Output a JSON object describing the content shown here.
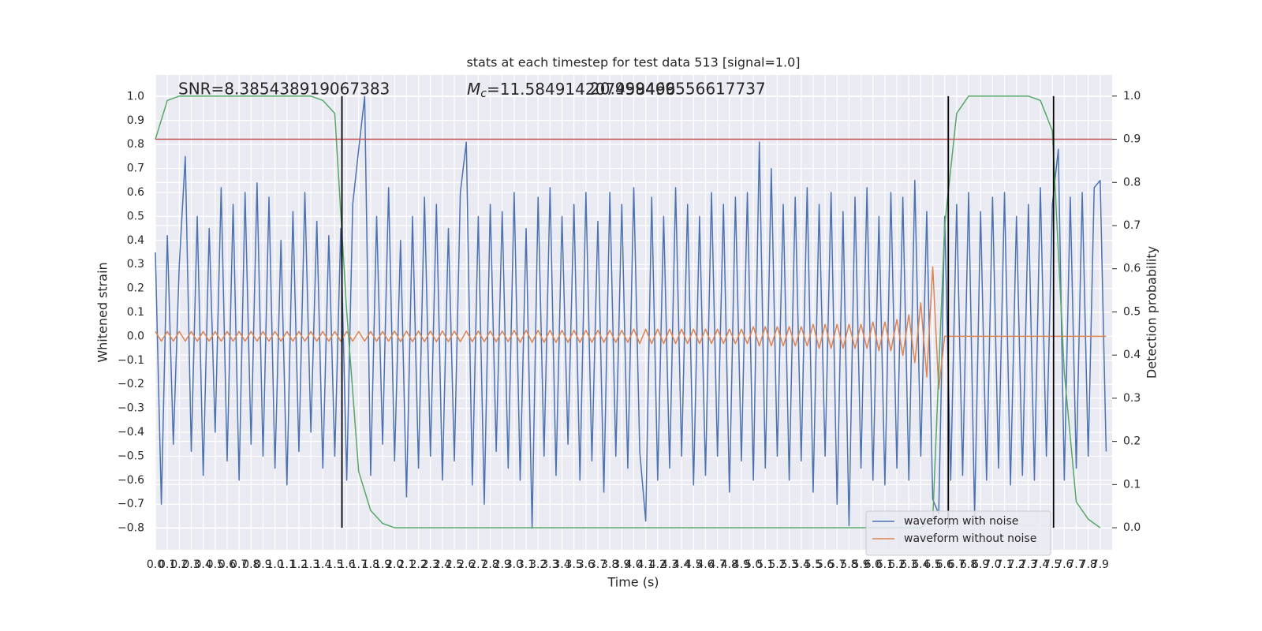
{
  "chart_data": {
    "type": "line",
    "title": "stats at each timestep for test data 513 [signal=1.0]",
    "xlabel": "Time (s)",
    "ylabel": "Whitened strain",
    "y2label": "Detection probability",
    "annotations": [
      {
        "text": "SNR=8.385438919067383"
      },
      {
        "symbol": "M",
        "subscript": "c",
        "text": "=11.584914207458496"
      },
      {
        "text": "20.999469556617737"
      }
    ],
    "x": [
      0,
      0.05,
      0.1,
      0.15,
      0.2,
      0.25,
      0.3,
      0.35,
      0.4,
      0.45,
      0.5,
      0.55,
      0.6,
      0.65,
      0.7,
      0.75,
      0.8,
      0.85,
      0.9,
      0.95,
      1.0,
      1.05,
      1.1,
      1.15,
      1.2,
      1.25,
      1.3,
      1.35,
      1.4,
      1.45,
      1.5,
      1.55,
      1.6,
      1.65,
      1.7,
      1.75,
      1.8,
      1.85,
      1.9,
      1.95,
      2.0,
      2.05,
      2.1,
      2.15,
      2.2,
      2.25,
      2.3,
      2.35,
      2.4,
      2.45,
      2.5,
      2.55,
      2.6,
      2.65,
      2.7,
      2.75,
      2.8,
      2.85,
      2.9,
      2.95,
      3.0,
      3.05,
      3.1,
      3.15,
      3.2,
      3.25,
      3.3,
      3.35,
      3.4,
      3.45,
      3.5,
      3.55,
      3.6,
      3.65,
      3.7,
      3.75,
      3.8,
      3.85,
      3.9,
      3.95,
      4.0,
      4.05,
      4.1,
      4.15,
      4.2,
      4.25,
      4.3,
      4.35,
      4.4,
      4.45,
      4.5,
      4.55,
      4.6,
      4.65,
      4.7,
      4.75,
      4.8,
      4.85,
      4.9,
      4.95,
      5.0,
      5.05,
      5.1,
      5.15,
      5.2,
      5.25,
      5.3,
      5.35,
      5.4,
      5.45,
      5.5,
      5.55,
      5.6,
      5.65,
      5.7,
      5.75,
      5.8,
      5.85,
      5.9,
      5.95,
      6.0,
      6.05,
      6.1,
      6.15,
      6.2,
      6.25,
      6.3,
      6.35,
      6.4,
      6.45,
      6.5,
      6.55,
      6.6,
      6.65,
      6.7,
      6.75,
      6.8,
      6.85,
      6.9,
      6.95,
      7.0,
      7.05,
      7.1,
      7.15,
      7.2,
      7.25,
      7.3,
      7.35,
      7.4,
      7.45,
      7.5,
      7.55,
      7.6,
      7.65,
      7.7,
      7.75,
      7.8,
      7.85,
      7.9,
      7.95
    ],
    "series": [
      {
        "name": "waveform with noise",
        "color": "#4c72b0",
        "values": [
          0.35,
          -0.7,
          0.42,
          -0.45,
          0.3,
          0.75,
          -0.48,
          0.5,
          -0.58,
          0.45,
          -0.4,
          0.62,
          -0.52,
          0.55,
          -0.6,
          0.6,
          -0.45,
          0.64,
          -0.5,
          0.58,
          -0.55,
          0.4,
          -0.62,
          0.52,
          -0.48,
          0.6,
          -0.4,
          0.48,
          -0.55,
          0.42,
          -0.5,
          0.45,
          -0.6,
          0.55,
          0.78,
          1.0,
          -0.58,
          0.5,
          -0.45,
          0.62,
          -0.52,
          0.4,
          -0.67,
          0.5,
          -0.55,
          0.58,
          -0.5,
          0.55,
          -0.6,
          0.45,
          -0.52,
          0.6,
          0.81,
          -0.62,
          0.5,
          -0.7,
          0.55,
          -0.48,
          0.52,
          -0.55,
          0.6,
          -0.6,
          0.45,
          -0.8,
          0.58,
          -0.5,
          0.62,
          -0.58,
          0.5,
          -0.45,
          0.55,
          -0.6,
          0.6,
          -0.52,
          0.48,
          -0.65,
          0.6,
          -0.5,
          0.55,
          -0.55,
          0.62,
          -0.48,
          -0.77,
          0.58,
          -0.6,
          0.5,
          -0.55,
          0.62,
          -0.5,
          0.55,
          -0.62,
          0.5,
          -0.58,
          0.6,
          -0.5,
          0.55,
          -0.65,
          0.58,
          -0.52,
          0.6,
          -0.6,
          0.81,
          -0.55,
          0.7,
          -0.5,
          0.55,
          -0.6,
          0.58,
          -0.52,
          0.62,
          -0.65,
          0.55,
          -0.5,
          0.6,
          -0.7,
          0.52,
          -0.79,
          0.58,
          -0.55,
          0.62,
          -0.6,
          0.5,
          -0.62,
          0.6,
          -0.55,
          0.58,
          -0.6,
          0.65,
          -0.5,
          0.52,
          -0.68,
          -0.74,
          0.5,
          -0.6,
          0.55,
          -0.58,
          0.6,
          -0.75,
          0.52,
          -0.6,
          0.58,
          -0.55,
          0.6,
          -0.62,
          0.5,
          -0.58,
          0.55,
          -0.6,
          0.62,
          -0.5,
          0.55,
          0.78,
          -0.6,
          0.58,
          -0.55,
          0.6,
          -0.5,
          0.62,
          0.65,
          -0.48
        ]
      },
      {
        "name": "waveform without noise",
        "color": "#dd8452",
        "values": [
          0.02,
          -0.02,
          0.02,
          -0.02,
          0.02,
          -0.02,
          0.02,
          -0.02,
          0.02,
          -0.02,
          0.02,
          -0.02,
          0.02,
          -0.02,
          0.02,
          -0.02,
          0.02,
          -0.02,
          0.02,
          -0.02,
          0.02,
          -0.02,
          0.02,
          -0.02,
          0.02,
          -0.02,
          0.02,
          -0.02,
          0.02,
          -0.02,
          0.02,
          -0.02,
          0.02,
          -0.02,
          0.02,
          -0.02,
          0.02,
          -0.02,
          0.02,
          -0.02,
          0.022,
          -0.022,
          0.022,
          -0.022,
          0.022,
          -0.022,
          0.022,
          -0.022,
          0.022,
          -0.022,
          0.022,
          -0.022,
          0.022,
          -0.022,
          0.022,
          -0.022,
          0.022,
          -0.022,
          0.022,
          -0.022,
          0.025,
          -0.025,
          0.025,
          -0.025,
          0.025,
          -0.025,
          0.025,
          -0.025,
          0.025,
          -0.025,
          0.025,
          -0.025,
          0.025,
          -0.025,
          0.025,
          -0.025,
          0.025,
          -0.025,
          0.025,
          -0.025,
          0.03,
          -0.03,
          0.03,
          -0.03,
          0.03,
          -0.03,
          0.03,
          -0.03,
          0.03,
          -0.03,
          0.03,
          -0.03,
          0.03,
          -0.03,
          0.03,
          -0.03,
          0.03,
          -0.03,
          0.03,
          -0.03,
          0.04,
          -0.04,
          0.04,
          -0.04,
          0.04,
          -0.04,
          0.04,
          -0.04,
          0.04,
          -0.04,
          0.05,
          -0.05,
          0.05,
          -0.05,
          0.05,
          -0.05,
          0.05,
          -0.05,
          0.05,
          -0.05,
          0.06,
          -0.06,
          0.06,
          -0.06,
          0.07,
          -0.08,
          0.09,
          -0.11,
          0.14,
          -0.17,
          0.29,
          -0.22,
          0,
          0,
          0,
          0,
          0,
          0,
          0,
          0,
          0,
          0,
          0,
          0,
          0,
          0,
          0,
          0,
          0,
          0,
          0,
          0,
          0,
          0,
          0,
          0,
          0,
          0,
          0,
          0
        ]
      },
      {
        "color": "#55a868",
        "axis": "y2",
        "x": [
          0,
          0.1,
          0.2,
          0.3,
          0.4,
          0.5,
          0.6,
          0.7,
          0.8,
          0.9,
          1.0,
          1.1,
          1.2,
          1.3,
          1.4,
          1.5,
          1.6,
          1.7,
          1.8,
          1.9,
          2.0,
          2.1,
          2.2,
          2.3,
          2.4,
          2.5,
          2.6,
          2.7,
          2.8,
          2.9,
          3.0,
          3.1,
          3.2,
          3.3,
          3.4,
          3.5,
          3.6,
          3.7,
          3.8,
          3.9,
          4.0,
          4.1,
          4.2,
          4.3,
          4.4,
          4.5,
          4.6,
          4.7,
          4.8,
          4.9,
          5.0,
          5.1,
          5.2,
          5.3,
          5.4,
          5.5,
          5.6,
          5.7,
          5.8,
          5.9,
          6.0,
          6.1,
          6.2,
          6.3,
          6.4,
          6.5,
          6.6,
          6.7,
          6.8,
          6.9,
          7.0,
          7.1,
          7.2,
          7.3,
          7.4,
          7.5,
          7.6,
          7.7,
          7.8,
          7.9
        ],
        "values": [
          0.9,
          0.99,
          1.0,
          1.0,
          1.0,
          1.0,
          1.0,
          1.0,
          1.0,
          1.0,
          1.0,
          1.0,
          1.0,
          1.0,
          0.99,
          0.96,
          0.5,
          0.13,
          0.04,
          0.01,
          0,
          0,
          0,
          0,
          0,
          0,
          0,
          0,
          0,
          0,
          0,
          0,
          0,
          0,
          0,
          0,
          0,
          0,
          0,
          0,
          0,
          0,
          0,
          0,
          0,
          0,
          0,
          0,
          0,
          0,
          0,
          0,
          0,
          0,
          0,
          0,
          0,
          0,
          0,
          0,
          0,
          0,
          0,
          0,
          0,
          0.02,
          0.7,
          0.96,
          1.0,
          1.0,
          1.0,
          1.0,
          1.0,
          1.0,
          0.99,
          0.92,
          0.36,
          0.06,
          0.02,
          0
        ]
      }
    ],
    "hlines": [
      {
        "y": 0.9,
        "axis": "y2",
        "color": "#c44e52"
      }
    ],
    "vlines": {
      "x": [
        1.56,
        6.63,
        7.51
      ],
      "ymin": 0,
      "ymax": 1,
      "axis": "y2",
      "color": "#000000"
    },
    "xlim": [
      0,
      8.0
    ],
    "ylim": [
      -0.89,
      1.09
    ],
    "y2lim": [
      -0.051,
      1.049
    ],
    "xticks": [
      {
        "value": 0,
        "label": "0.0"
      },
      0.1,
      0.2,
      0.3,
      0.4,
      0.5,
      0.6,
      0.7,
      0.8,
      0.9,
      {
        "value": 1,
        "label": "1.0"
      },
      1.1,
      1.2,
      1.3,
      1.4,
      1.5,
      1.6,
      1.7,
      1.8,
      1.9,
      {
        "value": 2,
        "label": "2.0"
      },
      2.1,
      2.2,
      2.3,
      2.4,
      2.5,
      2.6,
      2.7,
      2.8,
      2.9,
      {
        "value": 3,
        "label": "3.0"
      },
      3.1,
      3.2,
      3.3,
      3.4,
      3.5,
      3.6,
      3.7,
      3.8,
      3.9,
      {
        "value": 4,
        "label": "4.0"
      },
      4.1,
      4.2,
      4.3,
      4.4,
      4.5,
      4.6,
      4.7,
      4.8,
      4.9,
      {
        "value": 5,
        "label": "5.0"
      },
      5.1,
      5.2,
      5.3,
      5.4,
      5.5,
      5.6,
      5.7,
      5.8,
      5.9,
      {
        "value": 6,
        "label": "6.0"
      },
      6.1,
      6.2,
      6.3,
      6.4,
      6.5,
      6.6,
      6.7,
      6.8,
      6.9,
      {
        "value": 7,
        "label": "7.0"
      },
      7.1,
      7.2,
      7.3,
      7.4,
      7.5,
      7.6,
      7.7,
      7.8,
      7.9
    ],
    "yticks": [
      {
        "value": -0.8,
        "label": "−0.8"
      },
      {
        "value": -0.7,
        "label": "−0.7"
      },
      {
        "value": -0.6,
        "label": "−0.6"
      },
      {
        "value": -0.5,
        "label": "−0.5"
      },
      {
        "value": -0.4,
        "label": "−0.4"
      },
      {
        "value": -0.3,
        "label": "−0.3"
      },
      {
        "value": -0.2,
        "label": "−0.2"
      },
      {
        "value": -0.1,
        "label": "−0.1"
      },
      {
        "value": 0,
        "label": "0.0"
      },
      0.1,
      0.2,
      0.3,
      0.4,
      0.5,
      0.6,
      0.7,
      0.8,
      0.9,
      {
        "value": 1,
        "label": "1.0"
      }
    ],
    "y2ticks": [
      {
        "value": 0,
        "label": "0.0"
      },
      0.1,
      0.2,
      0.3,
      0.4,
      0.5,
      0.6,
      0.7,
      0.8,
      0.9,
      {
        "value": 1,
        "label": "1.0"
      }
    ],
    "grid": true,
    "legend": "lower right"
  }
}
